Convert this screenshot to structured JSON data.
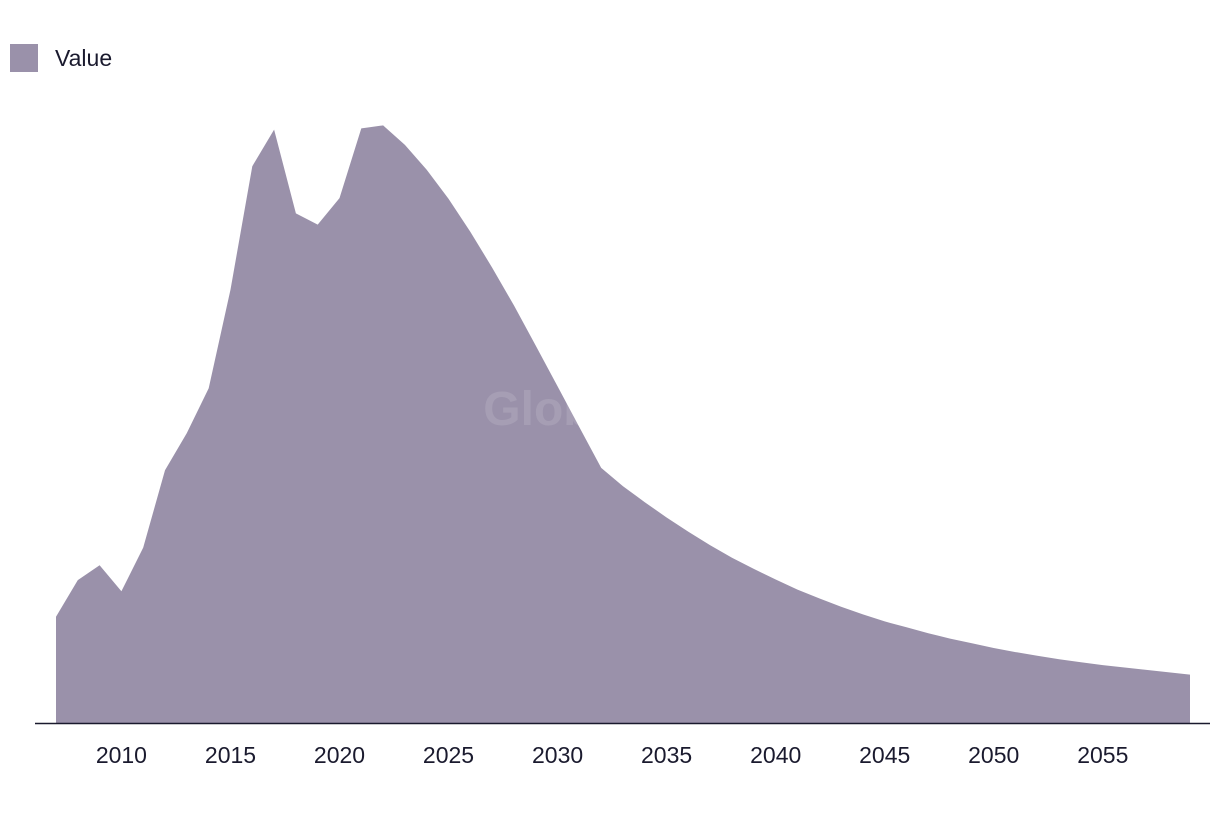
{
  "legend": {
    "label": "Value"
  },
  "watermark": "GlobalData",
  "colors": {
    "area": "#9a91aa",
    "axis": "#1a1a2e",
    "text": "#1a1a2e"
  },
  "chart_data": {
    "type": "area",
    "title": "",
    "xlabel": "",
    "ylabel": "",
    "grid": false,
    "legend_position": "top-left",
    "series": [
      {
        "name": "Value",
        "x": [
          2007,
          2008,
          2009,
          2010,
          2011,
          2012,
          2013,
          2014,
          2015,
          2016,
          2017,
          2018,
          2019,
          2020,
          2021,
          2022,
          2023,
          2024,
          2025,
          2026,
          2027,
          2028,
          2029,
          2030,
          2031,
          2032,
          2033,
          2034,
          2035,
          2036,
          2037,
          2038,
          2039,
          2040,
          2041,
          2042,
          2043,
          2044,
          2045,
          2046,
          2047,
          2048,
          2049,
          2050,
          2051,
          2052,
          2053,
          2054,
          2055,
          2056,
          2057,
          2058,
          2059
        ],
        "values": [
          18,
          24.2,
          26.7,
          22.3,
          29.7,
          42.8,
          49.1,
          56.7,
          73.4,
          94.3,
          100.5,
          86.3,
          84.4,
          88.9,
          100.7,
          101.2,
          97.9,
          93.7,
          88.8,
          83.2,
          77.1,
          70.7,
          63.9,
          57.0,
          50.1,
          43.2,
          40.1,
          37.4,
          34.8,
          32.4,
          30.1,
          28.0,
          26.1,
          24.3,
          22.6,
          21.1,
          19.7,
          18.4,
          17.2,
          16.2,
          15.2,
          14.3,
          13.5,
          12.7,
          12.0,
          11.4,
          10.8,
          10.3,
          9.8,
          9.4,
          9.0,
          8.6,
          8.2
        ]
      }
    ],
    "x_ticks": [
      "2010",
      "2015",
      "2020",
      "2025",
      "2030",
      "2035",
      "2040",
      "2045",
      "2050",
      "2055"
    ],
    "xlim": [
      2007,
      2059
    ],
    "ylim": [
      0,
      105
    ]
  }
}
